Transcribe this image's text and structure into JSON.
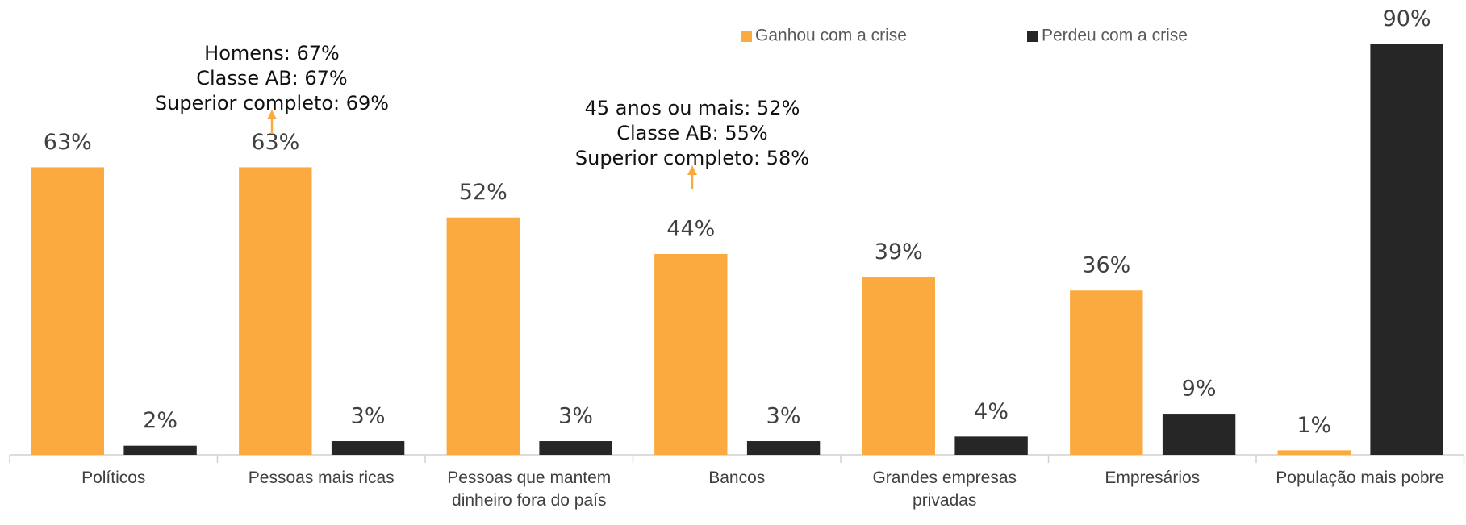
{
  "chart_data": {
    "type": "bar",
    "categories": [
      "Políticos",
      "Pessoas mais ricas",
      "Pessoas que mantem dinheiro fora do país",
      "Bancos",
      "Grandes empresas privadas",
      "Empresários",
      "População mais pobre"
    ],
    "series": [
      {
        "name": "Ganhou com a crise",
        "color": "#fbaa3f",
        "values": [
          63,
          63,
          52,
          44,
          39,
          36,
          1
        ],
        "value_labels": [
          "63%",
          "63%",
          "52%",
          "44%",
          "39%",
          "36%",
          "1%"
        ]
      },
      {
        "name": "Perdeu com a crise",
        "color": "#262626",
        "values": [
          2,
          3,
          3,
          3,
          4,
          9,
          90
        ],
        "value_labels": [
          "2%",
          "3%",
          "3%",
          "3%",
          "4%",
          "9%",
          "90%"
        ]
      }
    ],
    "ylim": [
      0,
      100
    ],
    "annotations": [
      {
        "lines": [
          "Homens: 67%",
          "Classe AB: 67%",
          "Superior completo: 69%"
        ]
      },
      {
        "lines": [
          "45 anos ou mais: 52%",
          "Classe AB: 55%",
          "Superior completo: 58%"
        ]
      }
    ],
    "legend": "top"
  }
}
